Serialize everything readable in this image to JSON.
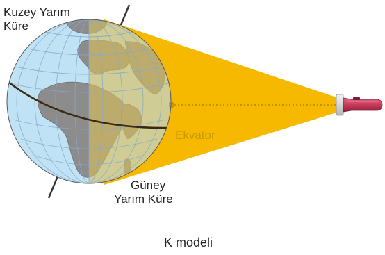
{
  "labels": {
    "north_hemisphere": [
      "Kuzey Yarım",
      "Küre"
    ],
    "south_hemisphere": [
      "Güney",
      "Yarım Küre"
    ],
    "equator": "Ekvator",
    "caption": "K modeli"
  },
  "colors": {
    "ocean": "#bfe3f5",
    "land": "#8c8c8c",
    "light_beam": "#f7b800",
    "lit_overlay": "#c8b46a",
    "equator_label": "#c89a00",
    "flashlight_body": "#c83a5a",
    "axis": "#333333"
  },
  "icons": {
    "flashlight": "flashlight-icon",
    "globe": "globe-icon"
  }
}
